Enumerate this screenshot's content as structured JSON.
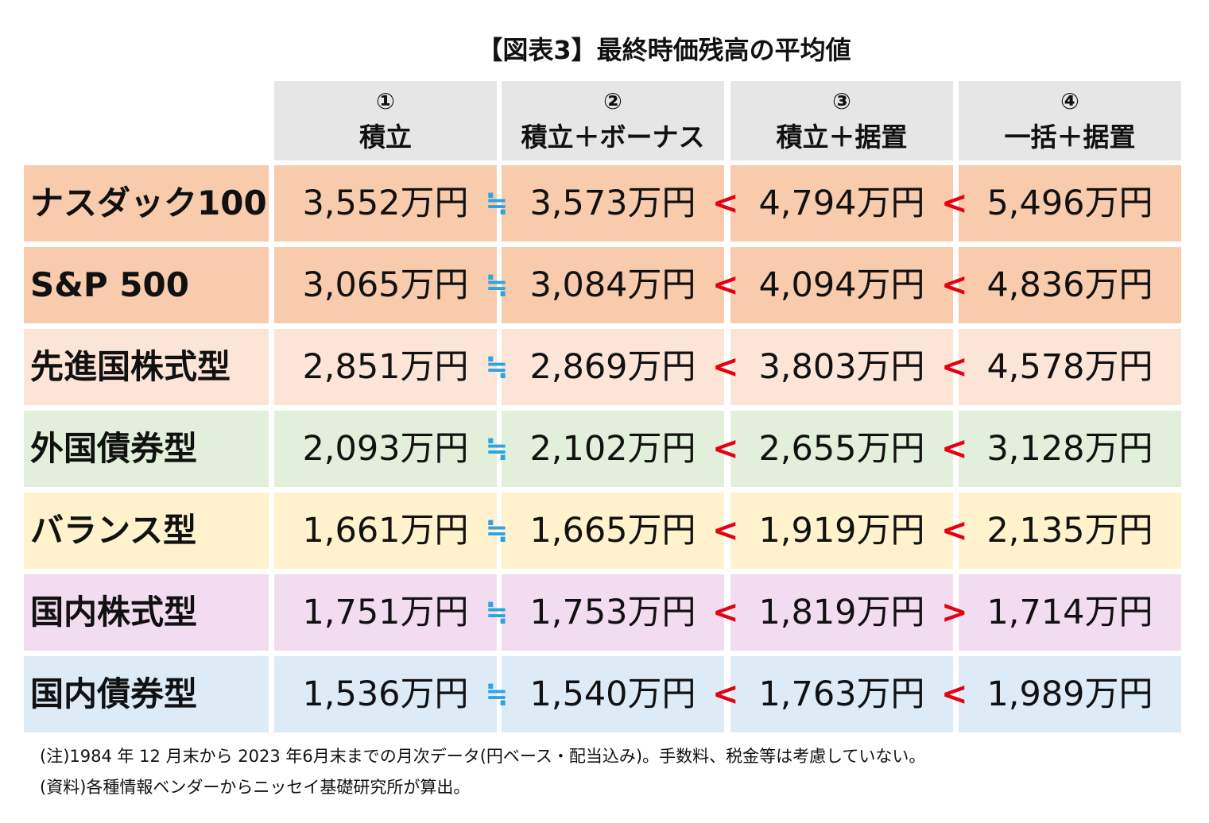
{
  "title": "【図表3】最終時価残高の平均値",
  "chart_data": {
    "type": "table",
    "title": "【図表3】最終時価残高の平均値",
    "columns": [
      {
        "num": "①",
        "label": "積立"
      },
      {
        "num": "②",
        "label": "積立＋ボーナス"
      },
      {
        "num": "③",
        "label": "積立＋据置"
      },
      {
        "num": "④",
        "label": "一括＋据置"
      }
    ],
    "rows": [
      {
        "label": "ナスダック100",
        "color": "#f8cbad",
        "cells": [
          "3,552万円",
          "3,573万円",
          "4,794万円",
          "5,496万円"
        ],
        "values": [
          3552,
          3573,
          4794,
          5496
        ],
        "symbols": [
          "≒",
          "<",
          "<"
        ]
      },
      {
        "label": "S&P 500",
        "color": "#f8cbad",
        "cells": [
          "3,065万円",
          "3,084万円",
          "4,094万円",
          "4,836万円"
        ],
        "values": [
          3065,
          3084,
          4094,
          4836
        ],
        "symbols": [
          "≒",
          "<",
          "<"
        ]
      },
      {
        "label": "先進国株式型",
        "color": "#fce4d6",
        "cells": [
          "2,851万円",
          "2,869万円",
          "3,803万円",
          "4,578万円"
        ],
        "values": [
          2851,
          2869,
          3803,
          4578
        ],
        "symbols": [
          "≒",
          "<",
          "<"
        ]
      },
      {
        "label": "外国債券型",
        "color": "#e2efda",
        "cells": [
          "2,093万円",
          "2,102万円",
          "2,655万円",
          "3,128万円"
        ],
        "values": [
          2093,
          2102,
          2655,
          3128
        ],
        "symbols": [
          "≒",
          "<",
          "<"
        ]
      },
      {
        "label": "バランス型",
        "color": "#fff2cc",
        "cells": [
          "1,661万円",
          "1,665万円",
          "1,919万円",
          "2,135万円"
        ],
        "values": [
          1661,
          1665,
          1919,
          2135
        ],
        "symbols": [
          "≒",
          "<",
          "<"
        ]
      },
      {
        "label": "国内株式型",
        "color": "#f2dcf0",
        "cells": [
          "1,751万円",
          "1,753万円",
          "1,819万円",
          "1,714万円"
        ],
        "values": [
          1751,
          1753,
          1819,
          1714
        ],
        "symbols": [
          "≒",
          "<",
          ">"
        ]
      },
      {
        "label": "国内債券型",
        "color": "#ddebf7",
        "cells": [
          "1,536万円",
          "1,540万円",
          "1,763万円",
          "1,989万円"
        ],
        "values": [
          1536,
          1540,
          1763,
          1989
        ],
        "symbols": [
          "≒",
          "<",
          "<"
        ]
      }
    ]
  },
  "notes": {
    "note1": "(注)1984 年 12 月末から 2023 年6月末までの月次データ(円ベース・配当込み)。手数料、税金等は考慮していない。",
    "note2": "(資料)各種情報ベンダーからニッセイ基礎研究所が算出。"
  }
}
